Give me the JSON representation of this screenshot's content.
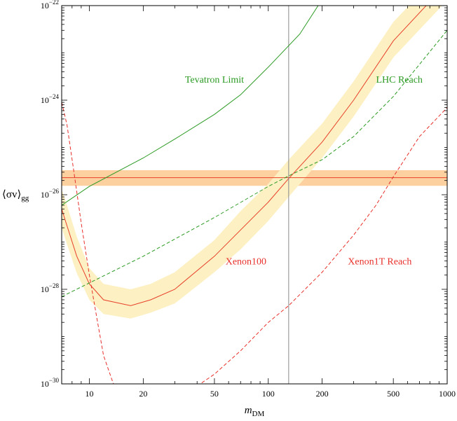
{
  "chart_data": {
    "type": "line",
    "xscale": "log",
    "yscale": "log",
    "xlim": [
      7,
      1000
    ],
    "ylim": [
      1e-30,
      1e-22
    ],
    "xlabel": {
      "main": "m",
      "sub": "DM"
    },
    "ylabel": {
      "main": "⟨σv⟩",
      "sub": "gg"
    },
    "x_ticks": [
      {
        "value": 10,
        "label": "10"
      },
      {
        "value": 20,
        "label": "20"
      },
      {
        "value": 50,
        "label": "50"
      },
      {
        "value": 100,
        "label": "100"
      },
      {
        "value": 200,
        "label": "200"
      },
      {
        "value": 500,
        "label": "500"
      },
      {
        "value": 1000,
        "label": "1000"
      }
    ],
    "y_ticks": [
      {
        "value": 1e-22,
        "base": "10",
        "exp": "−22"
      },
      {
        "value": 1e-24,
        "base": "10",
        "exp": "−24"
      },
      {
        "value": 1e-26,
        "base": "10",
        "exp": "−26"
      },
      {
        "value": 1e-28,
        "base": "10",
        "exp": "−28"
      },
      {
        "value": 1e-30,
        "base": "10",
        "exp": "−30"
      }
    ],
    "vertical_line": {
      "x": 130,
      "color": "#888888"
    },
    "bands": [
      {
        "name": "horizontal-band",
        "color": "#fdd0a0",
        "center_color": "#e8402a",
        "x": [
          7,
          1000
        ],
        "center": [
          2.3e-26,
          2.3e-26
        ],
        "lower": [
          1.55e-26,
          1.55e-26
        ],
        "upper": [
          3.3e-26,
          3.3e-26
        ]
      },
      {
        "name": "xenon100-band",
        "color": "#fdf0c2",
        "center_color": "#e8402a",
        "x": [
          7,
          7.5,
          8.5,
          10,
          12,
          17,
          22,
          30,
          50,
          70,
          100,
          130,
          200,
          300,
          500,
          1000
        ],
        "center": [
          5e-27,
          2.2e-27,
          5e-28,
          1.3e-28,
          6e-29,
          4.5e-29,
          6e-29,
          1e-28,
          5e-28,
          1.8e-27,
          7e-27,
          2.2e-26,
          1.3e-25,
          1e-24,
          1.8e-23,
          3e-22
        ],
        "lower": [
          2e-27,
          9e-28,
          2.2e-28,
          6e-29,
          3e-29,
          2.4e-29,
          3.2e-29,
          5e-29,
          2.3e-28,
          7e-28,
          2.8e-27,
          9e-27,
          6e-26,
          4.5e-25,
          8e-24,
          1.3e-22
        ],
        "upper": [
          1.3e-26,
          6e-27,
          1.3e-27,
          2.8e-28,
          1.3e-28,
          1e-28,
          1.3e-28,
          2.3e-28,
          1.1e-27,
          4.5e-27,
          1.7e-26,
          5.5e-26,
          3.2e-25,
          2.5e-24,
          4.5e-23,
          7e-22
        ]
      }
    ],
    "series": [
      {
        "name": "Tevatron Limit",
        "color": "#2a9a22",
        "dash": "solid",
        "x": [
          7,
          10,
          20,
          30,
          50,
          70,
          100,
          150,
          190,
          300
        ],
        "y": [
          6e-27,
          1.5e-26,
          6e-26,
          1.5e-25,
          5e-25,
          1.3e-24,
          5e-24,
          2.5e-23,
          1e-22,
          1e-21
        ]
      },
      {
        "name": "LHC Reach",
        "color": "#2a9a22",
        "dash": "dashed",
        "x": [
          7,
          20,
          50,
          100,
          130,
          200,
          300,
          500,
          1000
        ],
        "y": [
          7e-29,
          5e-28,
          3.3e-27,
          1.5e-26,
          2.5e-26,
          5.5e-26,
          1.7e-25,
          1.2e-24,
          3e-23
        ]
      },
      {
        "name": "Xenon1T Reach",
        "color": "#e8302a",
        "dash": "dashed",
        "x": [
          7,
          7.5,
          8.2,
          9,
          10,
          11,
          12,
          13.5,
          15
        ],
        "y": [
          9e-25,
          3e-25,
          3e-26,
          2.5e-27,
          2e-28,
          2.5e-29,
          4e-30,
          1.1e-30,
          4e-31
        ]
      },
      {
        "name": "Xenon1T Reach right",
        "color": "#e8302a",
        "dash": "dashed",
        "x": [
          40,
          50,
          70,
          100,
          130,
          200,
          300,
          400,
          500,
          700,
          1000
        ],
        "y": [
          9e-31,
          1.6e-30,
          5e-30,
          2e-29,
          4.5e-29,
          2.3e-28,
          1.4e-27,
          6e-27,
          2.4e-26,
          1.7e-25,
          7e-25
        ]
      }
    ],
    "annotations": [
      {
        "name": "tevatron-label",
        "text": "Tevatron Limit",
        "x": 50,
        "y": 2.8e-24,
        "color": "#2a9a22"
      },
      {
        "name": "lhc-label",
        "text": "LHC Reach",
        "x": 540,
        "y": 2.8e-24,
        "color": "#2a9a22"
      },
      {
        "name": "xenon100-label",
        "text": "Xenon100",
        "x": 75,
        "y": 4e-28,
        "color": "#e8302a"
      },
      {
        "name": "xenon1t-label",
        "text": "Xenon1T Reach",
        "x": 420,
        "y": 4e-28,
        "color": "#e8302a"
      }
    ]
  }
}
